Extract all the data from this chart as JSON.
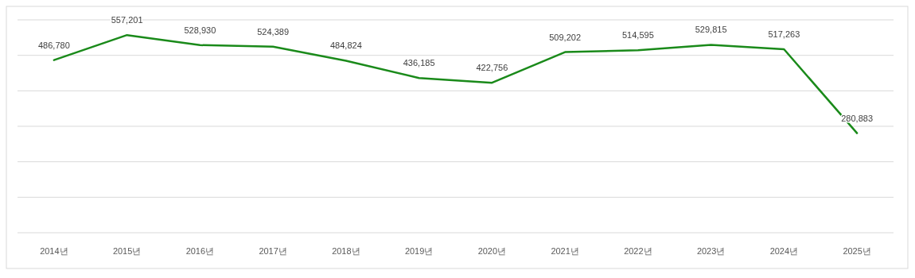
{
  "chart_data": {
    "type": "line",
    "categories": [
      "2014년",
      "2015년",
      "2016년",
      "2017년",
      "2018년",
      "2019년",
      "2020년",
      "2021년",
      "2022년",
      "2023년",
      "2024년",
      "2025년"
    ],
    "series": [
      {
        "color": "#1a8a1a",
        "values": [
          486780,
          557201,
          528930,
          524389,
          484824,
          436185,
          422756,
          509202,
          514595,
          529815,
          517263,
          280883
        ],
        "value_labels": [
          "486,780",
          "557,201",
          "528,930",
          "524,389",
          "484,824",
          "436,185",
          "422,756",
          "509,202",
          "514,595",
          "529,815",
          "517,263",
          "280,883"
        ]
      }
    ],
    "tick_labels": "x",
    "grid": "y"
  }
}
